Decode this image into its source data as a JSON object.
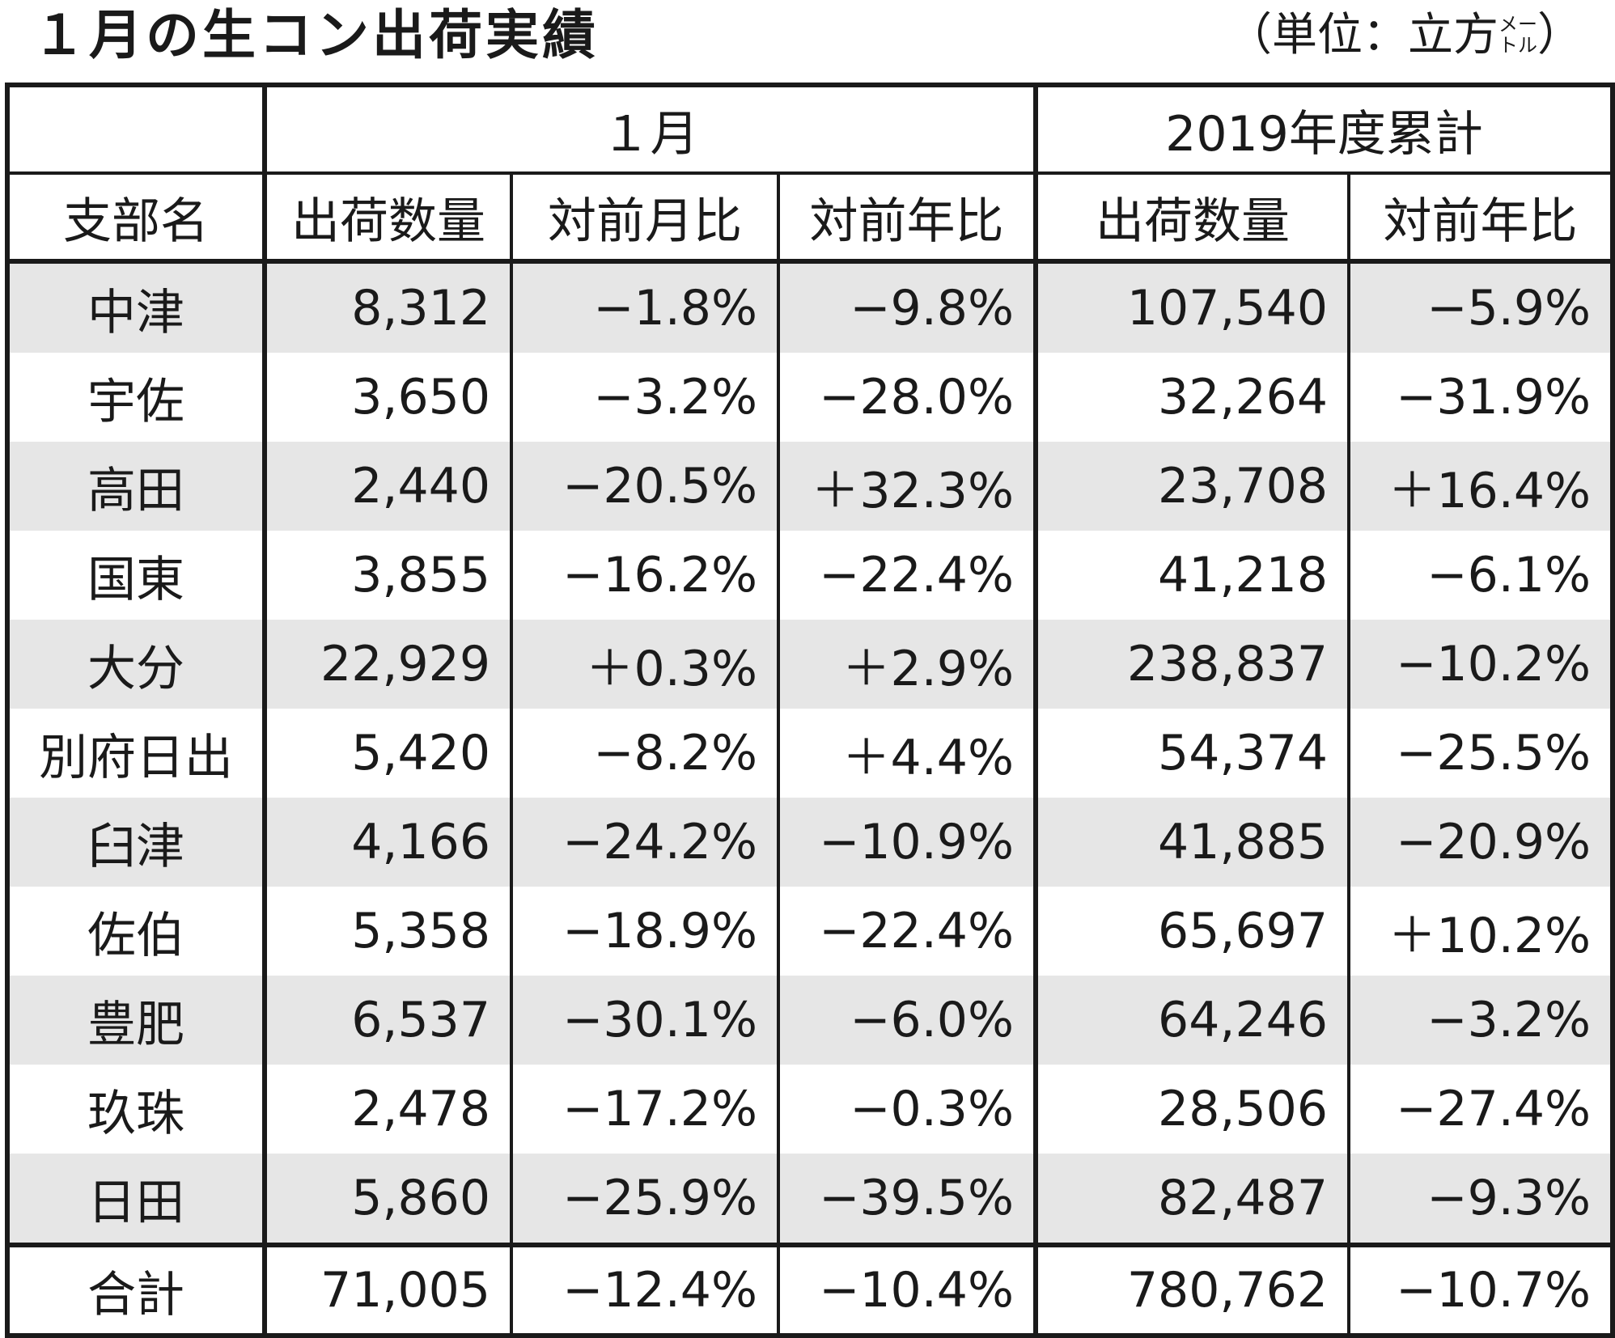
{
  "title": "１月の生コン出荷実績",
  "unit": {
    "open": "（",
    "label": "単位：立方",
    "stack_top": "メー",
    "stack_bottom": "トル",
    "close": "）"
  },
  "headers": {
    "group_month": "１月",
    "group_ytd": "2019年度累計",
    "branch": "支部名",
    "shipment": "出荷数量",
    "mom": "対前月比",
    "yoy": "対前年比",
    "ytd_shipment": "出荷数量",
    "ytd_yoy": "対前年比"
  },
  "rows": [
    {
      "name": "中津",
      "qty": "8,312",
      "mom": "−1.8%",
      "yoy": "−9.8%",
      "ytd_qty": "107,540",
      "ytd_yoy": "−5.9%"
    },
    {
      "name": "宇佐",
      "qty": "3,650",
      "mom": "−3.2%",
      "yoy": "−28.0%",
      "ytd_qty": "32,264",
      "ytd_yoy": "−31.9%"
    },
    {
      "name": "高田",
      "qty": "2,440",
      "mom": "−20.5%",
      "yoy": "＋32.3%",
      "ytd_qty": "23,708",
      "ytd_yoy": "＋16.4%"
    },
    {
      "name": "国東",
      "qty": "3,855",
      "mom": "−16.2%",
      "yoy": "−22.4%",
      "ytd_qty": "41,218",
      "ytd_yoy": "−6.1%"
    },
    {
      "name": "大分",
      "qty": "22,929",
      "mom": "＋0.3%",
      "yoy": "＋2.9%",
      "ytd_qty": "238,837",
      "ytd_yoy": "−10.2%"
    },
    {
      "name": "別府日出",
      "qty": "5,420",
      "mom": "−8.2%",
      "yoy": "＋4.4%",
      "ytd_qty": "54,374",
      "ytd_yoy": "−25.5%"
    },
    {
      "name": "臼津",
      "qty": "4,166",
      "mom": "−24.2%",
      "yoy": "−10.9%",
      "ytd_qty": "41,885",
      "ytd_yoy": "−20.9%"
    },
    {
      "name": "佐伯",
      "qty": "5,358",
      "mom": "−18.9%",
      "yoy": "−22.4%",
      "ytd_qty": "65,697",
      "ytd_yoy": "＋10.2%"
    },
    {
      "name": "豊肥",
      "qty": "6,537",
      "mom": "−30.1%",
      "yoy": "−6.0%",
      "ytd_qty": "64,246",
      "ytd_yoy": "−3.2%"
    },
    {
      "name": "玖珠",
      "qty": "2,478",
      "mom": "−17.2%",
      "yoy": "−0.3%",
      "ytd_qty": "28,506",
      "ytd_yoy": "−27.4%"
    },
    {
      "name": "日田",
      "qty": "5,860",
      "mom": "−25.9%",
      "yoy": "−39.5%",
      "ytd_qty": "82,487",
      "ytd_yoy": "−9.3%"
    }
  ],
  "total": {
    "name": "合計",
    "qty": "71,005",
    "mom": "−12.4%",
    "yoy": "−10.4%",
    "ytd_qty": "780,762",
    "ytd_yoy": "−10.7%"
  },
  "colors": {
    "border": "#1a1a1a",
    "row_shade": "#e6e6e6",
    "background": "#ffffff"
  }
}
